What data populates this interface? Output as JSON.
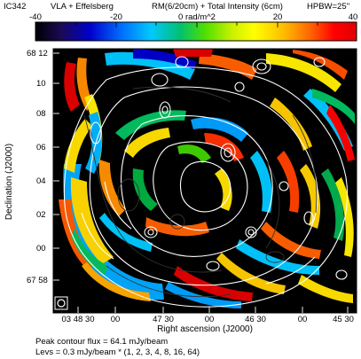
{
  "title": {
    "source": "IC342",
    "instrument": "VLA + Effelsberg",
    "description": "RM(6/20cm) + Total Intensity (6cm)",
    "beam": "HPBW=25''"
  },
  "colorbar": {
    "ticks": [
      "-40",
      "-20",
      "0 rad/m^2",
      "20",
      "40"
    ],
    "colors": [
      "#000000",
      "#1a0a55",
      "#0000cc",
      "#0070ff",
      "#00c8ff",
      "#00c070",
      "#50e000",
      "#c8f000",
      "#ffff00",
      "#ffc000",
      "#ff6000",
      "#ff0000",
      "#e00000"
    ]
  },
  "axes": {
    "xlabel": "Right ascension (J2000)",
    "ylabel": "Declination (J2000)",
    "xticks": [
      "03 48 30",
      "00",
      "47 30",
      "00",
      "46 30",
      "00",
      "45 30"
    ],
    "yticks": [
      "68 12",
      "10",
      "08",
      "06",
      "04",
      "02",
      "00",
      "67 58"
    ]
  },
  "footer": {
    "peak": "Peak contour flux =  64.1 mJy/beam",
    "levels": "Levs = 0.3 mJy/beam * (1, 2, 3, 4, 8, 16, 64)"
  }
}
